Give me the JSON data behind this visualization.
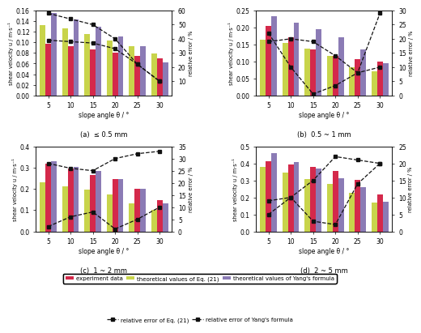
{
  "angles": [
    5,
    10,
    15,
    20,
    25,
    30
  ],
  "panels": [
    {
      "label": "(a)  ≤ 0.5 mm",
      "ylim_bar": [
        0.0,
        0.16
      ],
      "yticks_bar": [
        0.0,
        0.02,
        0.04,
        0.06,
        0.08,
        0.1,
        0.12,
        0.14,
        0.16
      ],
      "ylim_err": [
        0,
        60
      ],
      "yticks_err": [
        10,
        20,
        30,
        40,
        50,
        60
      ],
      "exp": [
        0.097,
        0.093,
        0.087,
        0.08,
        0.075,
        0.07
      ],
      "eq21": [
        0.133,
        0.126,
        0.116,
        0.104,
        0.093,
        0.079
      ],
      "yang": [
        0.155,
        0.143,
        0.13,
        0.111,
        0.093,
        0.062
      ],
      "err21": [
        39.0,
        38.0,
        37.0,
        33.0,
        22.0,
        10.0
      ],
      "erryang": [
        58.0,
        54.0,
        50.0,
        40.0,
        22.0,
        10.0
      ]
    },
    {
      "label": "(b)  0.5 ~ 1 mm",
      "ylim_bar": [
        0.0,
        0.25
      ],
      "yticks_bar": [
        0.0,
        0.05,
        0.1,
        0.15,
        0.2,
        0.25
      ],
      "ylim_err": [
        0,
        30
      ],
      "yticks_err": [
        0,
        5,
        10,
        15,
        20,
        25,
        30
      ],
      "exp": [
        0.205,
        0.17,
        0.136,
        0.116,
        0.106,
        0.1
      ],
      "eq21": [
        0.165,
        0.155,
        0.137,
        0.116,
        0.083,
        0.07
      ],
      "yang": [
        0.233,
        0.215,
        0.196,
        0.17,
        0.135,
        0.094
      ],
      "err21": [
        22.0,
        10.0,
        0.5,
        3.5,
        8.0,
        10.0
      ],
      "erryang": [
        19.0,
        20.0,
        19.0,
        14.0,
        8.0,
        29.0
      ]
    },
    {
      "label": "(c)  1 ~ 2 mm",
      "ylim_bar": [
        0.0,
        0.4
      ],
      "yticks_bar": [
        0.0,
        0.1,
        0.2,
        0.3,
        0.4
      ],
      "ylim_err": [
        0,
        35
      ],
      "yticks_err": [
        0,
        5,
        10,
        15,
        20,
        25,
        30,
        35
      ],
      "exp": [
        0.32,
        0.295,
        0.265,
        0.247,
        0.202,
        0.147
      ],
      "eq21": [
        0.231,
        0.213,
        0.196,
        0.175,
        0.133,
        0.103
      ],
      "yang": [
        0.33,
        0.305,
        0.285,
        0.247,
        0.2,
        0.13
      ],
      "err21": [
        2.0,
        6.0,
        8.0,
        1.0,
        5.0,
        10.0
      ],
      "erryang": [
        28.0,
        26.0,
        25.0,
        30.0,
        32.0,
        33.0
      ]
    },
    {
      "label": "(d)  2 ~ 5 mm",
      "ylim_bar": [
        0.0,
        0.5
      ],
      "yticks_bar": [
        0.0,
        0.1,
        0.2,
        0.3,
        0.4,
        0.5
      ],
      "ylim_err": [
        0,
        25
      ],
      "yticks_err": [
        0,
        5,
        10,
        15,
        20,
        25
      ],
      "exp": [
        0.415,
        0.392,
        0.378,
        0.355,
        0.302,
        0.218
      ],
      "eq21": [
        0.378,
        0.345,
        0.31,
        0.278,
        0.228,
        0.17
      ],
      "yang": [
        0.46,
        0.408,
        0.368,
        0.315,
        0.258,
        0.172
      ],
      "err21": [
        9.0,
        10.0,
        3.0,
        2.0,
        14.0,
        20.0
      ],
      "erryang": [
        5.0,
        10.0,
        15.0,
        22.0,
        21.0,
        20.0
      ]
    }
  ],
  "color_exp": "#d4294b",
  "color_eq21": "#c8d44b",
  "color_yang": "#8b7bb5",
  "color_line": "#111111",
  "bar_width": 0.25,
  "xlabel": "slope angle θ / °",
  "ylabel_left": "shear velocity u / m·s⁻¹",
  "ylabel_right": "relative error / %"
}
